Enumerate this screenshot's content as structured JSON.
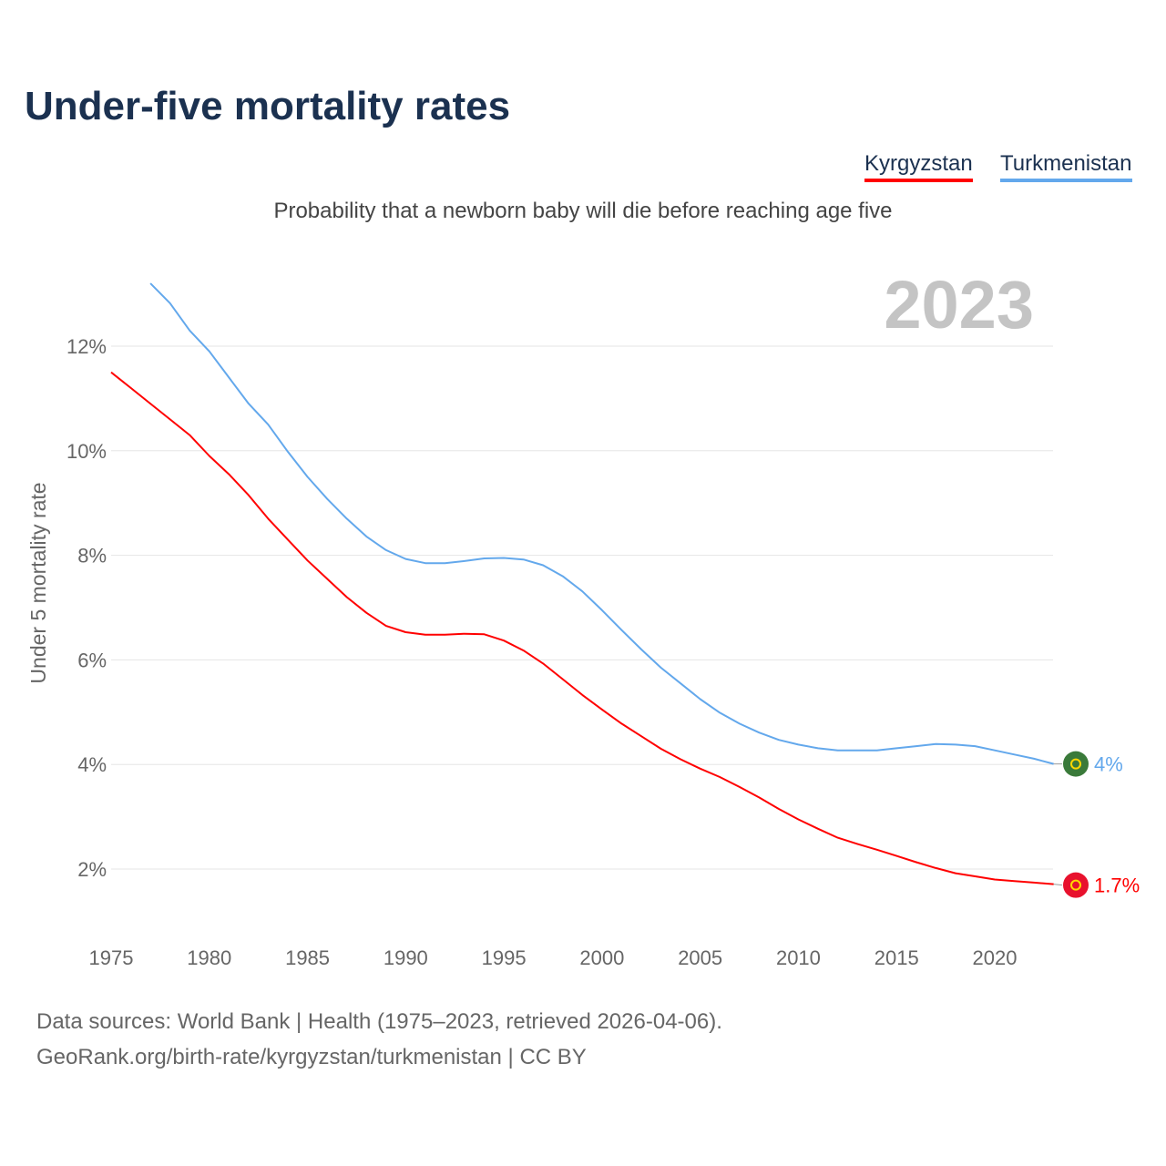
{
  "title": "Under-five mortality rates",
  "subtitle": "Probability that a newborn baby will die before reaching age five",
  "sources": {
    "line1": "Data sources: World Bank | Health (1975–2023, retrieved 2026-04-06).",
    "line2": "GeoRank.org/birth-rate/kyrgyzstan/turkmenistan | CC BY"
  },
  "chart_data": {
    "type": "line",
    "title": "Under-five mortality rates",
    "ylabel": "Under 5 mortality rate",
    "xlabel": "",
    "year_label": "2023",
    "xlim": [
      1975,
      2023
    ],
    "ylim": [
      0,
      13.5
    ],
    "xticks": [
      1975,
      1980,
      1985,
      1990,
      1995,
      2000,
      2005,
      2010,
      2015,
      2020
    ],
    "yticks": [
      2,
      4,
      6,
      8,
      10,
      12
    ],
    "ytick_labels": [
      "2%",
      "4%",
      "6%",
      "8%",
      "10%",
      "12%"
    ],
    "grid": true,
    "legend_position": "top-right",
    "series": [
      {
        "name": "Kyrgyzstan",
        "color": "#ff0000",
        "end_label": "1.7%",
        "flag_color": "#e8112d",
        "x": [
          1975,
          1976,
          1977,
          1978,
          1979,
          1980,
          1981,
          1982,
          1983,
          1984,
          1985,
          1986,
          1987,
          1988,
          1989,
          1990,
          1991,
          1992,
          1993,
          1994,
          1995,
          1996,
          1997,
          1998,
          1999,
          2000,
          2001,
          2002,
          2003,
          2004,
          2005,
          2006,
          2007,
          2008,
          2009,
          2010,
          2011,
          2012,
          2013,
          2014,
          2015,
          2016,
          2017,
          2018,
          2019,
          2020,
          2021,
          2022,
          2023
        ],
        "values": [
          11.5,
          11.2,
          10.9,
          10.6,
          10.3,
          9.9,
          9.55,
          9.15,
          8.7,
          8.3,
          7.9,
          7.55,
          7.2,
          6.9,
          6.65,
          6.53,
          6.48,
          6.48,
          6.5,
          6.49,
          6.37,
          6.18,
          5.93,
          5.63,
          5.33,
          5.05,
          4.78,
          4.54,
          4.3,
          4.1,
          3.92,
          3.76,
          3.57,
          3.37,
          3.15,
          2.95,
          2.77,
          2.6,
          2.48,
          2.37,
          2.25,
          2.13,
          2.02,
          1.92,
          1.86,
          1.8,
          1.77,
          1.74,
          1.71
        ]
      },
      {
        "name": "Turkmenistan",
        "color": "#63a8ec",
        "end_label": "4%",
        "flag_color": "#3a7a3a",
        "x": [
          1977,
          1978,
          1979,
          1980,
          1981,
          1982,
          1983,
          1984,
          1985,
          1986,
          1987,
          1988,
          1989,
          1990,
          1991,
          1992,
          1993,
          1994,
          1995,
          1996,
          1997,
          1998,
          1999,
          2000,
          2001,
          2002,
          2003,
          2004,
          2005,
          2006,
          2007,
          2008,
          2009,
          2010,
          2011,
          2012,
          2013,
          2014,
          2015,
          2016,
          2017,
          2018,
          2019,
          2020,
          2021,
          2022,
          2023
        ],
        "values": [
          13.2,
          12.82,
          12.3,
          11.9,
          11.4,
          10.9,
          10.5,
          9.98,
          9.5,
          9.08,
          8.7,
          8.36,
          8.1,
          7.93,
          7.85,
          7.85,
          7.89,
          7.94,
          7.95,
          7.92,
          7.81,
          7.6,
          7.31,
          6.95,
          6.57,
          6.2,
          5.85,
          5.55,
          5.25,
          4.99,
          4.78,
          4.61,
          4.47,
          4.38,
          4.31,
          4.27,
          4.27,
          4.27,
          4.31,
          4.35,
          4.39,
          4.38,
          4.35,
          4.27,
          4.19,
          4.11,
          4.01
        ]
      }
    ]
  }
}
